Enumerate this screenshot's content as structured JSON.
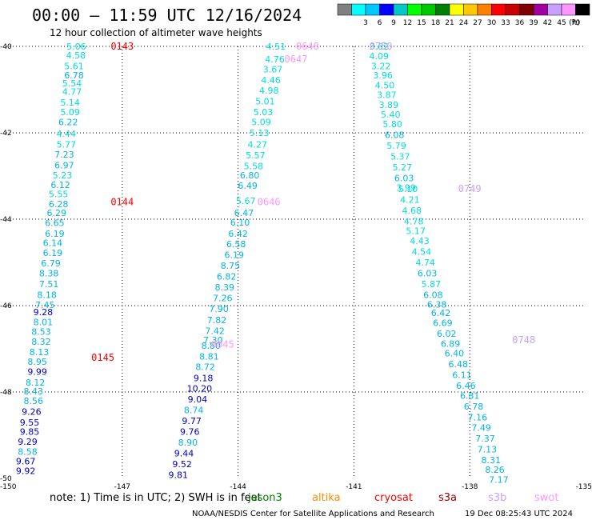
{
  "header": {
    "title": "00:00 – 11:59 UTC 12/16/2024",
    "subtitle": "12 hour collection of altimeter wave heights"
  },
  "color_scale": {
    "unit": "(ft)",
    "bins": [
      {
        "label": "",
        "color": "#808080"
      },
      {
        "label": "3",
        "color": "#00ffff"
      },
      {
        "label": "6",
        "color": "#00c8ff"
      },
      {
        "label": "9",
        "color": "#0000ff"
      },
      {
        "label": "12",
        "color": "#00c8c8"
      },
      {
        "label": "15",
        "color": "#00ff00"
      },
      {
        "label": "18",
        "color": "#00c800"
      },
      {
        "label": "21",
        "color": "#008000"
      },
      {
        "label": "24",
        "color": "#ffff00"
      },
      {
        "label": "27",
        "color": "#ffc800"
      },
      {
        "label": "30",
        "color": "#ff8000"
      },
      {
        "label": "33",
        "color": "#ff0000"
      },
      {
        "label": "36",
        "color": "#c80000"
      },
      {
        "label": "39",
        "color": "#800000"
      },
      {
        "label": "42",
        "color": "#a000a0"
      },
      {
        "label": "45",
        "color": "#c8a0ff"
      },
      {
        "label": "70",
        "color": "#ff96ff"
      },
      {
        "label": "",
        "color": "#000000"
      }
    ]
  },
  "footer": {
    "note": "note:  1) Time is in UTC; 2) SWH is in feet",
    "credit": "NOAA/NESDIS Center for Satellite Applications and Research",
    "timestamp": "19 Dec 08:25:43 UTC 2024",
    "missions": [
      {
        "name": "jason3",
        "color": "#008000"
      },
      {
        "name": "altika",
        "color": "#ff8c00"
      },
      {
        "name": "cryosat",
        "color": "#ff0000"
      },
      {
        "name": "s3a",
        "color": "#a00000"
      },
      {
        "name": "s3b",
        "color": "#c8a0ff"
      },
      {
        "name": "swot",
        "color": "#ff96ff"
      }
    ]
  },
  "chart_data": {
    "type": "scatter",
    "title": "00:00 – 11:59 UTC 12/16/2024",
    "subtitle": "12 hour collection of altimeter wave heights",
    "x_range": [
      -150,
      -135
    ],
    "y_range": [
      -50,
      -40
    ],
    "x_ticks": [
      "-150",
      "-147",
      "-144",
      "-141",
      "-138",
      "-135"
    ],
    "y_ticks": [
      "-40",
      "-42",
      "-44",
      "-46",
      "-48",
      "-50"
    ],
    "x_tick_values": [
      -150,
      -147,
      -144,
      -141,
      -138,
      -135
    ],
    "y_tick_values": [
      -40,
      -42,
      -44,
      -46,
      -48,
      -50
    ],
    "grid": true,
    "time_labels": [
      {
        "text": "0143",
        "lon": -147.3,
        "lat": -40.0,
        "color": "#ff0000"
      },
      {
        "text": "0144",
        "lon": -147.3,
        "lat": -43.6,
        "color": "#ff0000"
      },
      {
        "text": "0145",
        "lon": -147.8,
        "lat": -47.2,
        "color": "#ff0000"
      },
      {
        "text": "0648",
        "lon": -142.5,
        "lat": -40.0,
        "color": "#ff96ff"
      },
      {
        "text": "0647",
        "lon": -142.8,
        "lat": -40.3,
        "color": "#ff96ff"
      },
      {
        "text": "0646",
        "lon": -143.5,
        "lat": -43.6,
        "color": "#ff96ff"
      },
      {
        "text": "0645",
        "lon": -144.7,
        "lat": -46.9,
        "color": "#ff96ff"
      },
      {
        "text": "0750",
        "lon": -140.6,
        "lat": -40.0,
        "color": "#c8a0ff"
      },
      {
        "text": "0749",
        "lon": -138.3,
        "lat": -43.3,
        "color": "#c8a0ff"
      },
      {
        "text": "0748",
        "lon": -136.9,
        "lat": -46.8,
        "color": "#c8a0ff"
      }
    ],
    "series": [
      {
        "values": [
          {
            "lon": -148.19,
            "lat": -40.0,
            "swh": "5.06"
          },
          {
            "lon": -148.2,
            "lat": -40.2,
            "swh": "4.58"
          },
          {
            "lon": -148.25,
            "lat": -40.45,
            "swh": "5.61"
          },
          {
            "lon": -148.25,
            "lat": -40.67,
            "swh": "6.78"
          },
          {
            "lon": -148.3,
            "lat": -40.85,
            "swh": "5.54"
          },
          {
            "lon": -148.3,
            "lat": -41.05,
            "swh": "4.77"
          },
          {
            "lon": -148.35,
            "lat": -41.3,
            "swh": "5.14"
          },
          {
            "lon": -148.35,
            "lat": -41.52,
            "swh": "5.09"
          },
          {
            "lon": -148.4,
            "lat": -41.75,
            "swh": "6.22"
          },
          {
            "lon": -148.45,
            "lat": -42.02,
            "swh": "4.44"
          },
          {
            "lon": -148.45,
            "lat": -42.27,
            "swh": "5.77"
          },
          {
            "lon": -148.5,
            "lat": -42.5,
            "swh": "7.23"
          },
          {
            "lon": -148.5,
            "lat": -42.75,
            "swh": "6.97"
          },
          {
            "lon": -148.55,
            "lat": -42.98,
            "swh": "5.23"
          },
          {
            "lon": -148.6,
            "lat": -43.2,
            "swh": "6.12"
          },
          {
            "lon": -148.65,
            "lat": -43.42,
            "swh": "5.55"
          },
          {
            "lon": -148.65,
            "lat": -43.65,
            "swh": "6.28"
          },
          {
            "lon": -148.7,
            "lat": -43.85,
            "swh": "6.29"
          },
          {
            "lon": -148.75,
            "lat": -44.08,
            "swh": "6.65"
          },
          {
            "lon": -148.75,
            "lat": -44.33,
            "swh": "6.19"
          },
          {
            "lon": -148.8,
            "lat": -44.55,
            "swh": "6.14"
          },
          {
            "lon": -148.8,
            "lat": -44.78,
            "swh": "6.19"
          },
          {
            "lon": -148.85,
            "lat": -45.02,
            "swh": "6.79"
          },
          {
            "lon": -148.9,
            "lat": -45.25,
            "swh": "8.38"
          },
          {
            "lon": -148.9,
            "lat": -45.5,
            "swh": "7.51"
          },
          {
            "lon": -148.95,
            "lat": -45.75,
            "swh": "8.18"
          },
          {
            "lon": -149.0,
            "lat": -45.98,
            "swh": "7.45"
          },
          {
            "lon": -149.05,
            "lat": -46.15,
            "swh": "9.28"
          },
          {
            "lon": -149.05,
            "lat": -46.38,
            "swh": "8.01"
          },
          {
            "lon": -149.1,
            "lat": -46.6,
            "swh": "8.53"
          },
          {
            "lon": -149.1,
            "lat": -46.83,
            "swh": "8.32"
          },
          {
            "lon": -149.15,
            "lat": -47.07,
            "swh": "8.13"
          },
          {
            "lon": -149.2,
            "lat": -47.3,
            "swh": "8.95"
          },
          {
            "lon": -149.2,
            "lat": -47.53,
            "swh": "9.99"
          },
          {
            "lon": -149.25,
            "lat": -47.78,
            "swh": "8.12"
          },
          {
            "lon": -149.3,
            "lat": -47.98,
            "swh": "8.43"
          },
          {
            "lon": -149.3,
            "lat": -48.2,
            "swh": "8.56"
          },
          {
            "lon": -149.35,
            "lat": -48.45,
            "swh": "9.26"
          },
          {
            "lon": -149.4,
            "lat": -48.7,
            "swh": "9.55"
          },
          {
            "lon": -149.4,
            "lat": -48.92,
            "swh": "9.85"
          },
          {
            "lon": -149.45,
            "lat": -49.15,
            "swh": "9.29"
          },
          {
            "lon": -149.45,
            "lat": -49.38,
            "swh": "8.58"
          },
          {
            "lon": -149.5,
            "lat": -49.6,
            "swh": "9.67"
          },
          {
            "lon": -149.5,
            "lat": -49.82,
            "swh": "9.92"
          }
        ]
      },
      {
        "values": [
          {
            "lon": -143.02,
            "lat": -40.0,
            "swh": "4.51"
          },
          {
            "lon": -143.05,
            "lat": -40.3,
            "swh": "4.76"
          },
          {
            "lon": -143.1,
            "lat": -40.53,
            "swh": "3.67"
          },
          {
            "lon": -143.15,
            "lat": -40.78,
            "swh": "4.46"
          },
          {
            "lon": -143.2,
            "lat": -41.02,
            "swh": "4.98"
          },
          {
            "lon": -143.3,
            "lat": -41.27,
            "swh": "5.01"
          },
          {
            "lon": -143.35,
            "lat": -41.52,
            "swh": "5.03"
          },
          {
            "lon": -143.4,
            "lat": -41.75,
            "swh": "5.09"
          },
          {
            "lon": -143.45,
            "lat": -42.0,
            "swh": "5.13"
          },
          {
            "lon": -143.5,
            "lat": -42.27,
            "swh": "4.27"
          },
          {
            "lon": -143.55,
            "lat": -42.52,
            "swh": "5.57"
          },
          {
            "lon": -143.6,
            "lat": -42.77,
            "swh": "5.58"
          },
          {
            "lon": -143.7,
            "lat": -42.98,
            "swh": "6.80"
          },
          {
            "lon": -143.75,
            "lat": -43.22,
            "swh": "6.49"
          },
          {
            "lon": -143.8,
            "lat": -43.57,
            "swh": "5.67"
          },
          {
            "lon": -143.85,
            "lat": -43.85,
            "swh": "6.47"
          },
          {
            "lon": -143.95,
            "lat": -44.07,
            "swh": "6.10"
          },
          {
            "lon": -144.0,
            "lat": -44.33,
            "swh": "6.42"
          },
          {
            "lon": -144.05,
            "lat": -44.57,
            "swh": "6.58"
          },
          {
            "lon": -144.1,
            "lat": -44.82,
            "swh": "6.19"
          },
          {
            "lon": -144.2,
            "lat": -45.07,
            "swh": "8.75"
          },
          {
            "lon": -144.3,
            "lat": -45.32,
            "swh": "6.82"
          },
          {
            "lon": -144.35,
            "lat": -45.57,
            "swh": "8.39"
          },
          {
            "lon": -144.4,
            "lat": -45.82,
            "swh": "7.26"
          },
          {
            "lon": -144.5,
            "lat": -46.07,
            "swh": "7.90"
          },
          {
            "lon": -144.55,
            "lat": -46.33,
            "swh": "7.82"
          },
          {
            "lon": -144.6,
            "lat": -46.58,
            "swh": "7.42"
          },
          {
            "lon": -144.65,
            "lat": -46.8,
            "swh": "7.30"
          },
          {
            "lon": -144.7,
            "lat": -46.93,
            "swh": "8.80"
          },
          {
            "lon": -144.75,
            "lat": -47.18,
            "swh": "8.81"
          },
          {
            "lon": -144.85,
            "lat": -47.42,
            "swh": "8.72"
          },
          {
            "lon": -144.9,
            "lat": -47.68,
            "swh": "9.18"
          },
          {
            "lon": -145.0,
            "lat": -47.92,
            "swh": "10.20"
          },
          {
            "lon": -145.05,
            "lat": -48.17,
            "swh": "9.04"
          },
          {
            "lon": -145.15,
            "lat": -48.42,
            "swh": "8.74"
          },
          {
            "lon": -145.2,
            "lat": -48.67,
            "swh": "9.77"
          },
          {
            "lon": -145.25,
            "lat": -48.92,
            "swh": "9.76"
          },
          {
            "lon": -145.3,
            "lat": -49.17,
            "swh": "8.90"
          },
          {
            "lon": -145.4,
            "lat": -49.42,
            "swh": "9.44"
          },
          {
            "lon": -145.45,
            "lat": -49.67,
            "swh": "9.52"
          },
          {
            "lon": -145.55,
            "lat": -49.92,
            "swh": "9.81"
          }
        ]
      },
      {
        "values": [
          {
            "lon": -140.35,
            "lat": -40.0,
            "swh": "3.62"
          },
          {
            "lon": -140.35,
            "lat": -40.22,
            "swh": "4.09"
          },
          {
            "lon": -140.3,
            "lat": -40.45,
            "swh": "3.22"
          },
          {
            "lon": -140.25,
            "lat": -40.67,
            "swh": "3.96"
          },
          {
            "lon": -140.2,
            "lat": -40.9,
            "swh": "4.50"
          },
          {
            "lon": -140.15,
            "lat": -41.12,
            "swh": "3.87"
          },
          {
            "lon": -140.1,
            "lat": -41.35,
            "swh": "3.89"
          },
          {
            "lon": -140.05,
            "lat": -41.57,
            "swh": "5.40"
          },
          {
            "lon": -140.0,
            "lat": -41.8,
            "swh": "5.80"
          },
          {
            "lon": -139.95,
            "lat": -42.05,
            "swh": "6.08"
          },
          {
            "lon": -139.9,
            "lat": -42.3,
            "swh": "5.79"
          },
          {
            "lon": -139.8,
            "lat": -42.55,
            "swh": "5.37"
          },
          {
            "lon": -139.75,
            "lat": -42.8,
            "swh": "5.27"
          },
          {
            "lon": -139.7,
            "lat": -43.05,
            "swh": "6.03"
          },
          {
            "lon": -139.65,
            "lat": -43.27,
            "swh": "3.99"
          },
          {
            "lon": -139.6,
            "lat": -43.3,
            "swh": "5.10"
          },
          {
            "lon": -139.55,
            "lat": -43.55,
            "swh": "4.21"
          },
          {
            "lon": -139.5,
            "lat": -43.8,
            "swh": "4.68"
          },
          {
            "lon": -139.45,
            "lat": -44.05,
            "swh": "4.78"
          },
          {
            "lon": -139.4,
            "lat": -44.27,
            "swh": "5.17"
          },
          {
            "lon": -139.3,
            "lat": -44.5,
            "swh": "4.43"
          },
          {
            "lon": -139.25,
            "lat": -44.75,
            "swh": "4.54"
          },
          {
            "lon": -139.15,
            "lat": -45.0,
            "swh": "4.74"
          },
          {
            "lon": -139.1,
            "lat": -45.25,
            "swh": "6.03"
          },
          {
            "lon": -139.0,
            "lat": -45.5,
            "swh": "5.87"
          },
          {
            "lon": -138.95,
            "lat": -45.75,
            "swh": "6.08"
          },
          {
            "lon": -138.85,
            "lat": -45.97,
            "swh": "6.38"
          },
          {
            "lon": -138.75,
            "lat": -46.17,
            "swh": "6.42"
          },
          {
            "lon": -138.7,
            "lat": -46.4,
            "swh": "6.69"
          },
          {
            "lon": -138.6,
            "lat": -46.65,
            "swh": "6.02"
          },
          {
            "lon": -138.5,
            "lat": -46.88,
            "swh": "6.89"
          },
          {
            "lon": -138.4,
            "lat": -47.1,
            "swh": "6.40"
          },
          {
            "lon": -138.3,
            "lat": -47.35,
            "swh": "6.48"
          },
          {
            "lon": -138.2,
            "lat": -47.6,
            "swh": "6.11"
          },
          {
            "lon": -138.1,
            "lat": -47.85,
            "swh": "6.46"
          },
          {
            "lon": -138.0,
            "lat": -48.08,
            "swh": "6.81"
          },
          {
            "lon": -137.9,
            "lat": -48.33,
            "swh": "6.78"
          },
          {
            "lon": -137.8,
            "lat": -48.58,
            "swh": "7.16"
          },
          {
            "lon": -137.7,
            "lat": -48.82,
            "swh": "7.49"
          },
          {
            "lon": -137.6,
            "lat": -49.07,
            "swh": "7.37"
          },
          {
            "lon": -137.55,
            "lat": -49.32,
            "swh": "7.13"
          },
          {
            "lon": -137.45,
            "lat": -49.57,
            "swh": "8.31"
          },
          {
            "lon": -137.35,
            "lat": -49.8,
            "swh": "8.26"
          },
          {
            "lon": -137.25,
            "lat": -50.03,
            "swh": "7.17"
          }
        ]
      }
    ]
  }
}
